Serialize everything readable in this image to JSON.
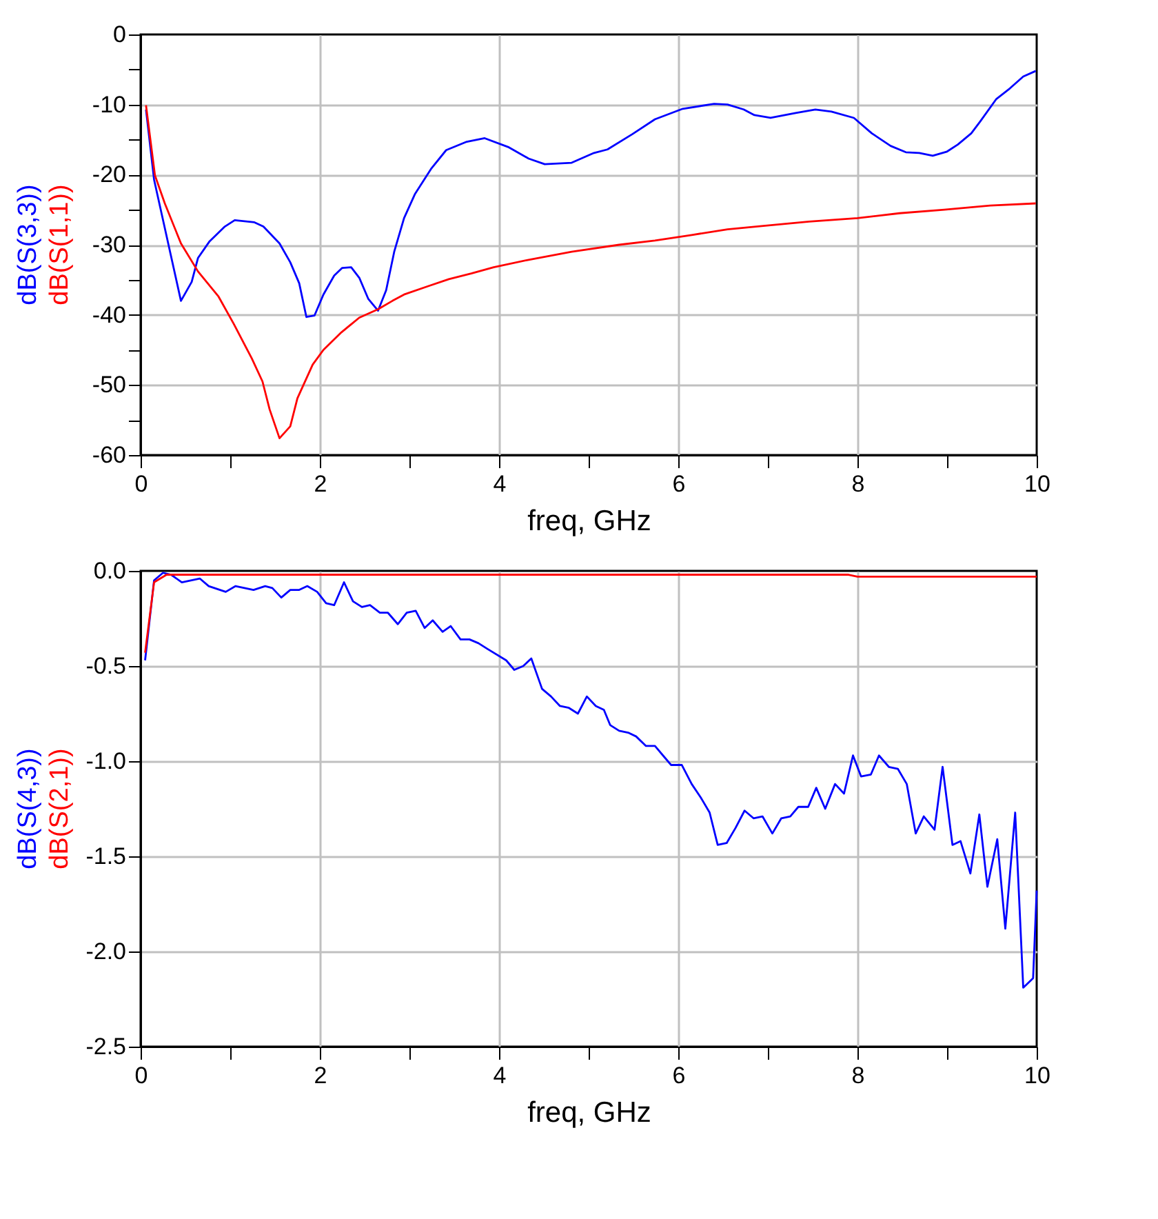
{
  "chart_data": [
    {
      "type": "line",
      "xlabel": "freq, GHz",
      "xlim": [
        0,
        10
      ],
      "ylim": [
        -60,
        0
      ],
      "grid": true,
      "xticks": [
        0,
        {
          "value": 1,
          "label": null
        },
        2,
        {
          "value": 3,
          "label": null
        },
        4,
        {
          "value": 5,
          "label": null
        },
        6,
        {
          "value": 7,
          "label": null
        },
        8,
        {
          "value": 9,
          "label": null
        },
        10
      ],
      "yticks": [
        -60,
        {
          "value": -55,
          "label": null
        },
        -50,
        {
          "value": -45,
          "label": null
        },
        -40,
        {
          "value": -35,
          "label": null
        },
        -30,
        {
          "value": -25,
          "label": null
        },
        -20,
        {
          "value": -15,
          "label": null
        },
        -10,
        {
          "value": -5,
          "label": null
        },
        0
      ],
      "series": [
        {
          "name": "dB(S(3,3))",
          "color": "#0000ff",
          "x": [
            0.06,
            0.15,
            0.45,
            0.57,
            0.64,
            0.77,
            0.94,
            1.05,
            1.27,
            1.37,
            1.55,
            1.67,
            1.77,
            1.85,
            1.94,
            2.04,
            2.16,
            2.25,
            2.35,
            2.44,
            2.54,
            2.65,
            2.74,
            2.83,
            2.94,
            3.06,
            3.24,
            3.41,
            3.64,
            3.84,
            4.11,
            4.33,
            4.51,
            4.81,
            5.06,
            5.21,
            5.49,
            5.74,
            6.05,
            6.4,
            6.55,
            6.73,
            6.85,
            7.03,
            7.31,
            7.53,
            7.71,
            7.96,
            8.16,
            8.37,
            8.54,
            8.69,
            8.84,
            9.0,
            9.12,
            9.27,
            9.37,
            9.55,
            9.7,
            9.85,
            9.99
          ],
          "values": [
            -10.7,
            -20.7,
            -38.0,
            -35.3,
            -31.9,
            -29.5,
            -27.4,
            -26.5,
            -26.8,
            -27.4,
            -29.8,
            -32.5,
            -35.5,
            -40.3,
            -40.1,
            -37.1,
            -34.4,
            -33.3,
            -33.2,
            -34.7,
            -37.7,
            -39.4,
            -36.5,
            -31.0,
            -26.2,
            -22.8,
            -19.2,
            -16.5,
            -15.3,
            -14.8,
            -16.1,
            -17.7,
            -18.5,
            -18.3,
            -16.9,
            -16.4,
            -14.2,
            -12.1,
            -10.6,
            -9.9,
            -10.0,
            -10.7,
            -11.5,
            -11.9,
            -11.2,
            -10.7,
            -11.0,
            -11.9,
            -14.1,
            -15.9,
            -16.8,
            -16.9,
            -17.3,
            -16.7,
            -15.7,
            -14.1,
            -12.4,
            -9.2,
            -7.7,
            -6.0,
            -5.2
          ]
        },
        {
          "name": "dB(S(1,1))",
          "color": "#ff0000",
          "x": [
            0.06,
            0.16,
            0.27,
            0.45,
            0.64,
            0.87,
            1.04,
            1.24,
            1.36,
            1.44,
            1.55,
            1.67,
            1.75,
            1.92,
            2.04,
            2.24,
            2.44,
            2.65,
            2.81,
            2.94,
            3.21,
            3.44,
            3.69,
            3.94,
            4.31,
            4.81,
            5.34,
            5.74,
            6.15,
            6.55,
            6.95,
            7.46,
            8.0,
            8.47,
            8.97,
            9.48,
            9.99
          ],
          "values": [
            -10.1,
            -20.1,
            -24.1,
            -29.8,
            -33.8,
            -37.4,
            -41.3,
            -46.2,
            -49.5,
            -53.5,
            -57.6,
            -55.9,
            -51.9,
            -47.1,
            -45.0,
            -42.5,
            -40.4,
            -39.2,
            -38.0,
            -37.1,
            -35.9,
            -34.9,
            -34.1,
            -33.2,
            -32.2,
            -31.0,
            -30.0,
            -29.4,
            -28.6,
            -27.8,
            -27.3,
            -26.7,
            -26.2,
            -25.5,
            -25.0,
            -24.4,
            -24.1
          ]
        }
      ]
    },
    {
      "type": "line",
      "xlabel": "freq, GHz",
      "xlim": [
        0,
        10
      ],
      "ylim": [
        -2.5,
        0
      ],
      "grid": true,
      "xticks": [
        0,
        {
          "value": 1,
          "label": null
        },
        2,
        {
          "value": 3,
          "label": null
        },
        4,
        {
          "value": 5,
          "label": null
        },
        6,
        {
          "value": 7,
          "label": null
        },
        8,
        {
          "value": 9,
          "label": null
        },
        10
      ],
      "yticks": [
        {
          "value": -2.5,
          "label": "-2.5"
        },
        {
          "value": -2,
          "label": "-2.0"
        },
        {
          "value": -1.5,
          "label": "-1.5"
        },
        {
          "value": -1,
          "label": "-1.0"
        },
        {
          "value": -0.5,
          "label": "-0.5"
        },
        {
          "value": 0,
          "label": "0.0"
        }
      ],
      "series": [
        {
          "name": "dB(S(4,3))",
          "color": "#0000ff",
          "x": [
            0.05,
            0.15,
            0.25,
            0.34,
            0.46,
            0.66,
            0.76,
            0.95,
            1.06,
            1.26,
            1.39,
            1.47,
            1.57,
            1.67,
            1.77,
            1.86,
            1.97,
            2.07,
            2.16,
            2.27,
            2.37,
            2.47,
            2.56,
            2.67,
            2.76,
            2.87,
            2.97,
            3.07,
            3.17,
            3.26,
            3.37,
            3.46,
            3.57,
            3.67,
            3.77,
            3.87,
            4.08,
            4.17,
            4.27,
            4.36,
            4.48,
            4.58,
            4.68,
            4.78,
            4.88,
            4.98,
            5.08,
            5.17,
            5.24,
            5.34,
            5.44,
            5.53,
            5.64,
            5.74,
            5.83,
            5.92,
            6.04,
            6.15,
            6.25,
            6.35,
            6.44,
            6.54,
            6.64,
            6.74,
            6.84,
            6.94,
            7.05,
            7.15,
            7.25,
            7.34,
            7.45,
            7.54,
            7.64,
            7.75,
            7.85,
            7.95,
            8.04,
            8.15,
            8.24,
            8.35,
            8.45,
            8.55,
            8.65,
            8.74,
            8.86,
            8.95,
            9.06,
            9.15,
            9.26,
            9.36,
            9.45,
            9.56,
            9.65,
            9.76,
            9.85,
            9.96,
            10.0
          ],
          "values": [
            -0.47,
            -0.05,
            -0.01,
            -0.02,
            -0.06,
            -0.04,
            -0.08,
            -0.11,
            -0.08,
            -0.1,
            -0.08,
            -0.09,
            -0.14,
            -0.1,
            -0.1,
            -0.08,
            -0.11,
            -0.17,
            -0.18,
            -0.06,
            -0.16,
            -0.19,
            -0.18,
            -0.22,
            -0.22,
            -0.28,
            -0.22,
            -0.21,
            -0.3,
            -0.26,
            -0.32,
            -0.29,
            -0.36,
            -0.36,
            -0.38,
            -0.41,
            -0.47,
            -0.52,
            -0.5,
            -0.46,
            -0.62,
            -0.66,
            -0.71,
            -0.72,
            -0.75,
            -0.66,
            -0.71,
            -0.73,
            -0.81,
            -0.84,
            -0.85,
            -0.87,
            -0.92,
            -0.92,
            -0.97,
            -1.02,
            -1.02,
            -1.12,
            -1.19,
            -1.27,
            -1.44,
            -1.43,
            -1.35,
            -1.26,
            -1.3,
            -1.29,
            -1.38,
            -1.3,
            -1.29,
            -1.24,
            -1.24,
            -1.14,
            -1.25,
            -1.12,
            -1.17,
            -0.97,
            -1.08,
            -1.07,
            -0.97,
            -1.03,
            -1.04,
            -1.12,
            -1.38,
            -1.29,
            -1.36,
            -1.03,
            -1.44,
            -1.42,
            -1.59,
            -1.28,
            -1.66,
            -1.41,
            -1.88,
            -1.27,
            -2.19,
            -2.14,
            -1.68
          ]
        },
        {
          "name": "dB(S(2,1))",
          "color": "#ff0000",
          "x": [
            0.05,
            0.15,
            0.29,
            7.9,
            8.0,
            10.0
          ],
          "values": [
            -0.43,
            -0.06,
            -0.02,
            -0.02,
            -0.03,
            -0.03
          ]
        }
      ]
    }
  ]
}
